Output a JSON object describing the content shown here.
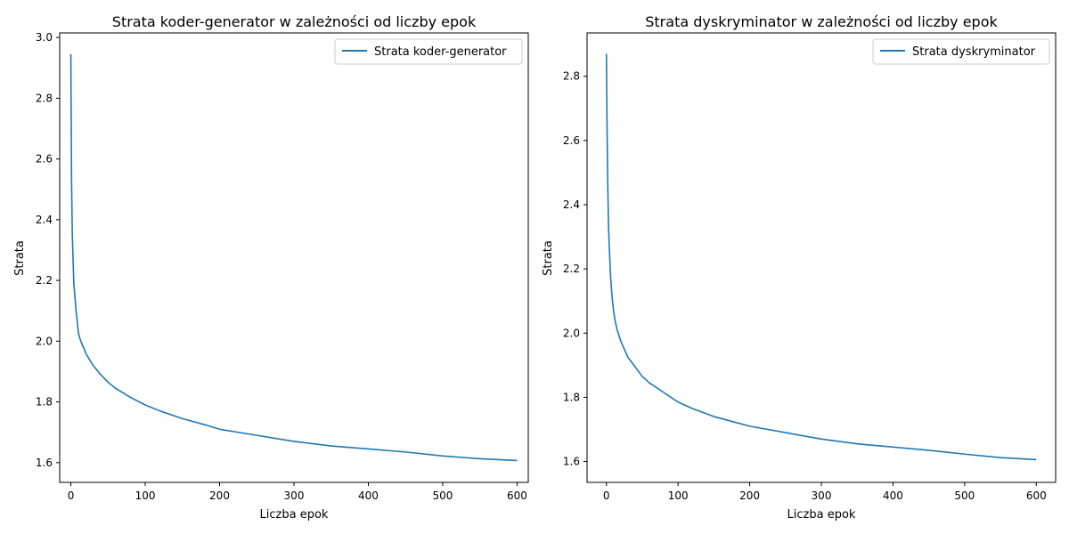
{
  "chart_data": [
    {
      "type": "line",
      "title": "Strata koder-generator w zależności od liczby epok",
      "xlabel": "Liczba epok",
      "ylabel": "Strata",
      "xlim": [
        -15,
        615
      ],
      "ylim": [
        1.535,
        3.015
      ],
      "xticks": [
        0,
        100,
        200,
        300,
        400,
        500,
        600
      ],
      "yticks": [
        1.6,
        1.8,
        2.0,
        2.2,
        2.4,
        2.6,
        2.8,
        3.0
      ],
      "ytick_labels": [
        "1.6",
        "1.8",
        "2.0",
        "2.2",
        "2.4",
        "2.6",
        "2.8",
        "3.0"
      ],
      "legend_position": "top-right",
      "grid": false,
      "color": "#1f77b4",
      "series": [
        {
          "name": "Strata koder-generator",
          "x": [
            0,
            1,
            2,
            3,
            4,
            5,
            6,
            7,
            8,
            10,
            12,
            15,
            18,
            20,
            25,
            30,
            35,
            40,
            50,
            60,
            70,
            80,
            100,
            120,
            150,
            180,
            200,
            250,
            300,
            350,
            400,
            450,
            500,
            550,
            600
          ],
          "y": [
            2.945,
            2.52,
            2.35,
            2.27,
            2.19,
            2.16,
            2.13,
            2.1,
            2.08,
            2.03,
            2.01,
            1.99,
            1.975,
            1.96,
            1.94,
            1.92,
            1.905,
            1.89,
            1.865,
            1.845,
            1.83,
            1.815,
            1.79,
            1.77,
            1.745,
            1.725,
            1.71,
            1.69,
            1.67,
            1.655,
            1.645,
            1.635,
            1.622,
            1.613,
            1.607
          ]
        }
      ]
    },
    {
      "type": "line",
      "title": "Strata dyskryminator w zależności od liczby epok",
      "xlabel": "Liczba epok",
      "ylabel": "Strata",
      "xlim": [
        -27,
        627
      ],
      "ylim": [
        1.535,
        2.935
      ],
      "xticks": [
        0,
        100,
        200,
        300,
        400,
        500,
        600
      ],
      "yticks": [
        1.6,
        1.8,
        2.0,
        2.2,
        2.4,
        2.6,
        2.8
      ],
      "ytick_labels": [
        "1.6",
        "1.8",
        "2.0",
        "2.2",
        "2.4",
        "2.6",
        "2.8"
      ],
      "legend_position": "top-right",
      "grid": false,
      "color": "#1f77b4",
      "series": [
        {
          "name": "Strata dyskryminator",
          "x": [
            0,
            1,
            2,
            3,
            4,
            5,
            6,
            7,
            8,
            10,
            12,
            15,
            18,
            20,
            25,
            30,
            35,
            40,
            50,
            60,
            70,
            80,
            100,
            120,
            150,
            180,
            200,
            250,
            300,
            350,
            400,
            450,
            500,
            550,
            600
          ],
          "y": [
            2.87,
            2.62,
            2.45,
            2.33,
            2.27,
            2.22,
            2.17,
            2.14,
            2.11,
            2.07,
            2.04,
            2.01,
            1.99,
            1.975,
            1.95,
            1.925,
            1.91,
            1.895,
            1.865,
            1.845,
            1.83,
            1.815,
            1.785,
            1.765,
            1.74,
            1.722,
            1.71,
            1.69,
            1.67,
            1.655,
            1.645,
            1.635,
            1.623,
            1.612,
            1.606
          ]
        }
      ]
    }
  ]
}
